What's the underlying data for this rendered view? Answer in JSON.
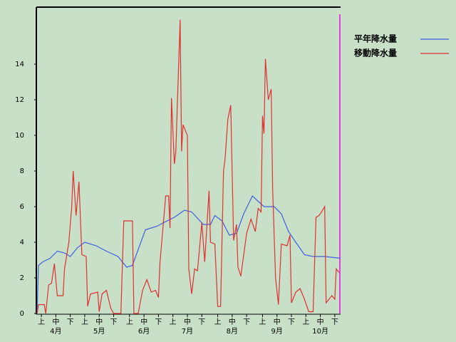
{
  "chart_data": {
    "type": "line",
    "xlim": [
      0,
      210
    ],
    "ylim": [
      0,
      17.2
    ],
    "yticks": [
      0,
      2,
      4,
      6,
      8,
      10,
      12,
      14
    ],
    "xticks": [
      {
        "value": 3,
        "label": "上"
      },
      {
        "value": 13,
        "label": "中"
      },
      {
        "value": 23,
        "label": "下"
      },
      {
        "value": 33,
        "label": "上"
      },
      {
        "value": 43,
        "label": "中"
      },
      {
        "value": 53,
        "label": "下"
      },
      {
        "value": 64,
        "label": "上"
      },
      {
        "value": 74,
        "label": "中"
      },
      {
        "value": 84,
        "label": "下"
      },
      {
        "value": 94,
        "label": "上"
      },
      {
        "value": 104,
        "label": "中"
      },
      {
        "value": 114,
        "label": "下"
      },
      {
        "value": 125,
        "label": "上"
      },
      {
        "value": 135,
        "label": "中"
      },
      {
        "value": 145,
        "label": "下"
      },
      {
        "value": 156,
        "label": "上"
      },
      {
        "value": 166,
        "label": "中"
      },
      {
        "value": 176,
        "label": "下"
      },
      {
        "value": 186,
        "label": "上"
      },
      {
        "value": 196,
        "label": "中"
      },
      {
        "value": 206,
        "label": "下"
      }
    ],
    "month_labels": [
      {
        "value": 13,
        "label": "4月"
      },
      {
        "value": 43,
        "label": "5月"
      },
      {
        "value": 74,
        "label": "6月"
      },
      {
        "value": 104,
        "label": "7月"
      },
      {
        "value": 135,
        "label": "8月"
      },
      {
        "value": 166,
        "label": "9月"
      },
      {
        "value": 196,
        "label": "10月"
      }
    ],
    "series": [
      {
        "name": "平年降水量",
        "color": "#4060e0",
        "x": [
          0,
          1,
          4,
          9,
          14,
          19,
          23,
          28,
          33,
          41,
          48,
          56,
          62,
          66,
          70,
          75,
          83,
          90,
          95,
          102,
          107,
          115,
          120,
          123,
          128,
          133,
          138,
          143,
          149,
          157,
          164,
          169,
          174,
          179,
          185,
          191,
          199,
          210
        ],
        "values": [
          0,
          2.7,
          2.9,
          3.1,
          3.5,
          3.4,
          3.2,
          3.7,
          4.0,
          3.8,
          3.5,
          3.2,
          2.6,
          2.7,
          3.6,
          4.7,
          4.9,
          5.2,
          5.4,
          5.8,
          5.7,
          5.0,
          5.0,
          5.5,
          5.2,
          4.4,
          4.5,
          5.6,
          6.6,
          6.0,
          6.0,
          5.6,
          4.6,
          4.0,
          3.3,
          3.2,
          3.2,
          3.1
        ]
      },
      {
        "name": "移動降水量",
        "color": "#e03030",
        "x": [
          0,
          1,
          5,
          6,
          8,
          10,
          12,
          14,
          18,
          19,
          22,
          24,
          25,
          27,
          29,
          31,
          34,
          35,
          37,
          42,
          43,
          45,
          48,
          51,
          53,
          58,
          60,
          66,
          67,
          70,
          73,
          76,
          79,
          82,
          84,
          85,
          89,
          91,
          92,
          93,
          95,
          96,
          99,
          100,
          101,
          104,
          105,
          107,
          109,
          111,
          114,
          116,
          119,
          120,
          123,
          125,
          127,
          129,
          130,
          132,
          134,
          136,
          138,
          139,
          141,
          143,
          145,
          148,
          151,
          153,
          155,
          156,
          157,
          158,
          160,
          162,
          163,
          165,
          167,
          169,
          173,
          175,
          176,
          179,
          182,
          185,
          188,
          191,
          193,
          195,
          196,
          199,
          200,
          202,
          204,
          206,
          207,
          209
        ],
        "values": [
          0,
          0.5,
          0.5,
          0,
          1.6,
          1.7,
          2.8,
          1.0,
          1.0,
          2.5,
          4,
          6,
          8.0,
          5.5,
          7.4,
          3.3,
          3.2,
          0.4,
          1.1,
          1.2,
          0.1,
          1.1,
          1.3,
          0.3,
          0,
          0,
          5.2,
          5.2,
          0,
          0,
          1.3,
          1.9,
          1.2,
          1.3,
          0.9,
          2.8,
          6.6,
          6.6,
          4.8,
          12.1,
          8.4,
          9.1,
          16.5,
          9.1,
          10.6,
          10.0,
          2.5,
          1.1,
          2.5,
          2.4,
          5.1,
          2.9,
          6.9,
          4.0,
          3.9,
          0.4,
          0.4,
          8.0,
          8.6,
          10.9,
          11.7,
          4.1,
          5.0,
          2.6,
          2.1,
          3.3,
          4.5,
          5.3,
          4.6,
          5.9,
          5.7,
          11.1,
          10.1,
          14.3,
          12.0,
          12.6,
          7.0,
          2.0,
          0.5,
          3.9,
          3.8,
          4.4,
          0.6,
          1.2,
          1.4,
          0.8,
          0.1,
          0.1,
          5.4,
          5.5,
          5.6,
          6.0,
          0.6,
          0.8,
          1.0,
          0.8,
          2.5,
          2.3
        ]
      }
    ]
  }
}
